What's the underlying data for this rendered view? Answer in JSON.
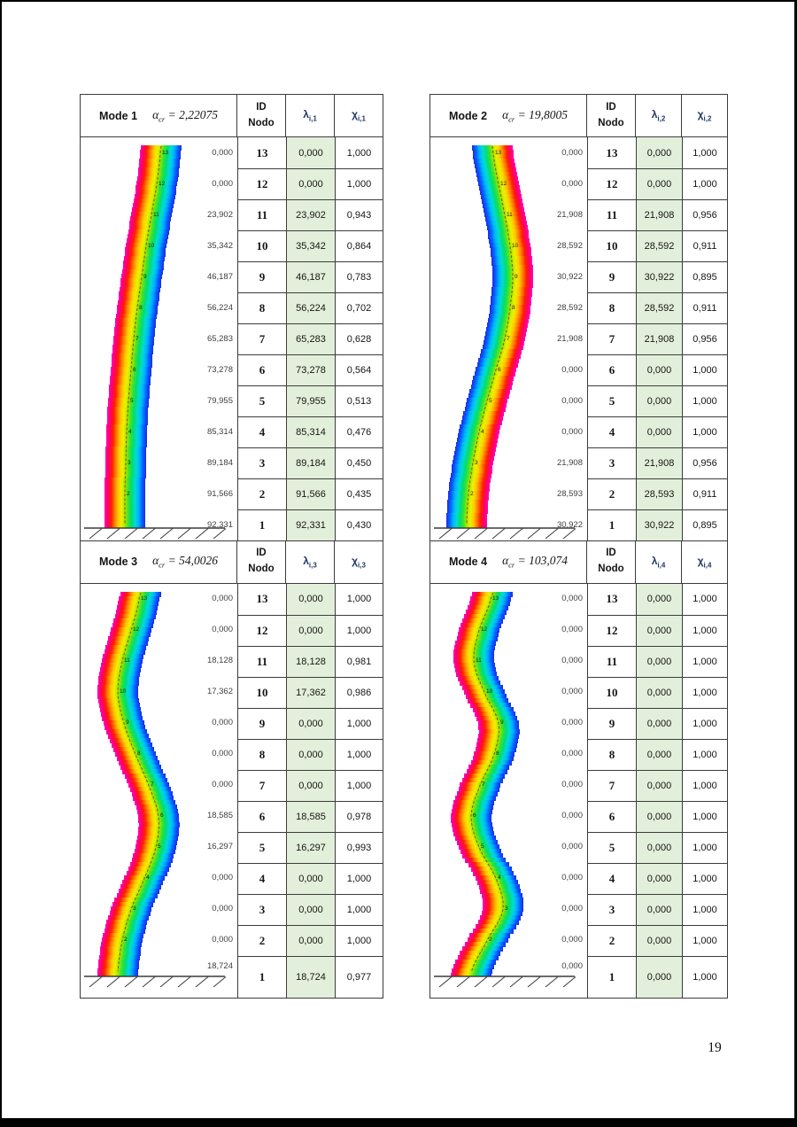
{
  "page": {
    "number": "19"
  },
  "palette": {
    "cell_green": "#e2efda",
    "border": "#3c3c3c",
    "header_symbol_color": "#1f3864",
    "centerline": "#c23000",
    "ground": "#3a3a3a",
    "rainbow": [
      "#ff00c0",
      "#ff0060",
      "#ff2000",
      "#ff7a00",
      "#ffc800",
      "#eef000",
      "#9cee00",
      "#3ce428",
      "#00dc78",
      "#00dcd0",
      "#00b4ff",
      "#0064ff",
      "#2228e8"
    ]
  },
  "modes": [
    {
      "name": "Mode 1",
      "alpha_symbol": "α",
      "alpha_sub": "cr",
      "alpha_value": "2,22075",
      "id_header": [
        "ID",
        "Nodo"
      ],
      "lambda_symbol": "λ",
      "lambda_sub": "i,1",
      "chi_symbol": "χ",
      "chi_sub": "i,1",
      "rows": [
        {
          "id": "13",
          "lambda": "0,000",
          "chi": "1,000",
          "annotation": "0,000"
        },
        {
          "id": "12",
          "lambda": "0,000",
          "chi": "1,000",
          "annotation": "0,000"
        },
        {
          "id": "11",
          "lambda": "23,902",
          "chi": "0,943",
          "annotation": "23,902"
        },
        {
          "id": "10",
          "lambda": "35,342",
          "chi": "0,864",
          "annotation": "35,342"
        },
        {
          "id": "9",
          "lambda": "46,187",
          "chi": "0,783",
          "annotation": "46,187"
        },
        {
          "id": "8",
          "lambda": "56,224",
          "chi": "0,702",
          "annotation": "56,224"
        },
        {
          "id": "7",
          "lambda": "65,283",
          "chi": "0,628",
          "annotation": "65,283"
        },
        {
          "id": "6",
          "lambda": "73,278",
          "chi": "0,564",
          "annotation": "73,278"
        },
        {
          "id": "5",
          "lambda": "79,955",
          "chi": "0,513",
          "annotation": "79,955"
        },
        {
          "id": "4",
          "lambda": "85,314",
          "chi": "0,476",
          "annotation": "85,314"
        },
        {
          "id": "3",
          "lambda": "89,184",
          "chi": "0,450",
          "annotation": "89,184"
        },
        {
          "id": "2",
          "lambda": "91,566",
          "chi": "0,435",
          "annotation": "91,566"
        },
        {
          "id": "1",
          "lambda": "92,331",
          "chi": "0,430",
          "annotation": "92,331"
        }
      ],
      "shape": {
        "centers": [
          90,
          86,
          80,
          74,
          69,
          64,
          60,
          57,
          54,
          52,
          51,
          50,
          50
        ],
        "half_width": 23,
        "flip": false
      }
    },
    {
      "name": "Mode 2",
      "alpha_symbol": "α",
      "alpha_sub": "cr",
      "alpha_value": "19,8005",
      "id_header": [
        "ID",
        "Nodo"
      ],
      "lambda_symbol": "λ",
      "lambda_sub": "i,2",
      "chi_symbol": "χ",
      "chi_sub": "i,2",
      "rows": [
        {
          "id": "13",
          "lambda": "0,000",
          "chi": "1,000",
          "annotation": "0,000"
        },
        {
          "id": "12",
          "lambda": "0,000",
          "chi": "1,000",
          "annotation": "0,000"
        },
        {
          "id": "11",
          "lambda": "21,908",
          "chi": "0,956",
          "annotation": "21,908"
        },
        {
          "id": "10",
          "lambda": "28,592",
          "chi": "0,911",
          "annotation": "28,592"
        },
        {
          "id": "9",
          "lambda": "30,922",
          "chi": "0,895",
          "annotation": "30,922"
        },
        {
          "id": "8",
          "lambda": "28,592",
          "chi": "0,911",
          "annotation": "28,592"
        },
        {
          "id": "7",
          "lambda": "21,908",
          "chi": "0,956",
          "annotation": "21,908"
        },
        {
          "id": "6",
          "lambda": "0,000",
          "chi": "1,000",
          "annotation": "0,000"
        },
        {
          "id": "5",
          "lambda": "0,000",
          "chi": "1,000",
          "annotation": "0,000"
        },
        {
          "id": "4",
          "lambda": "0,000",
          "chi": "1,000",
          "annotation": "0,000"
        },
        {
          "id": "3",
          "lambda": "21,908",
          "chi": "0,956",
          "annotation": "21,908"
        },
        {
          "id": "2",
          "lambda": "28,593",
          "chi": "0,911",
          "annotation": "28,593"
        },
        {
          "id": "1",
          "lambda": "30,922",
          "chi": "0,895",
          "annotation": "30,922"
        }
      ],
      "shape": {
        "centers": [
          71,
          77,
          84,
          90,
          93,
          90,
          84,
          74,
          64,
          55,
          48,
          43,
          41
        ],
        "half_width": 23,
        "flip": true
      }
    },
    {
      "name": "Mode 3",
      "alpha_symbol": "α",
      "alpha_sub": "cr",
      "alpha_value": "54,0026",
      "id_header": [
        "ID",
        "Nodo"
      ],
      "lambda_symbol": "λ",
      "lambda_sub": "i,3",
      "chi_symbol": "χ",
      "chi_sub": "i,3",
      "rows": [
        {
          "id": "13",
          "lambda": "0,000",
          "chi": "1,000",
          "annotation": "0,000"
        },
        {
          "id": "12",
          "lambda": "0,000",
          "chi": "1,000",
          "annotation": "0,000"
        },
        {
          "id": "11",
          "lambda": "18,128",
          "chi": "0,981",
          "annotation": "18,128"
        },
        {
          "id": "10",
          "lambda": "17,362",
          "chi": "0,986",
          "annotation": "17,362"
        },
        {
          "id": "9",
          "lambda": "0,000",
          "chi": "1,000",
          "annotation": "0,000"
        },
        {
          "id": "8",
          "lambda": "0,000",
          "chi": "1,000",
          "annotation": "0,000"
        },
        {
          "id": "7",
          "lambda": "0,000",
          "chi": "1,000",
          "annotation": "0,000"
        },
        {
          "id": "6",
          "lambda": "18,585",
          "chi": "0,978",
          "annotation": "18,585"
        },
        {
          "id": "5",
          "lambda": "16,297",
          "chi": "0,993",
          "annotation": "16,297"
        },
        {
          "id": "4",
          "lambda": "0,000",
          "chi": "1,000",
          "annotation": "0,000"
        },
        {
          "id": "3",
          "lambda": "0,000",
          "chi": "1,000",
          "annotation": "0,000"
        },
        {
          "id": "2",
          "lambda": "0,000",
          "chi": "1,000",
          "annotation": "0,000"
        },
        {
          "id": "1",
          "lambda": "18,724",
          "chi": "0,977",
          "annotation": "18,724"
        }
      ],
      "shape": {
        "centers": [
          66,
          57,
          47,
          42,
          49,
          62,
          77,
          88,
          85,
          72,
          57,
          47,
          42
        ],
        "half_width": 23,
        "flip": false
      }
    },
    {
      "name": "Mode 4",
      "alpha_symbol": "α",
      "alpha_sub": "cr",
      "alpha_value": "103,074",
      "id_header": [
        "ID",
        "Nodo"
      ],
      "lambda_symbol": "λ",
      "lambda_sub": "i,4",
      "chi_symbol": "χ",
      "chi_sub": "i,4",
      "rows": [
        {
          "id": "13",
          "lambda": "0,000",
          "chi": "1,000",
          "annotation": "0,000"
        },
        {
          "id": "12",
          "lambda": "0,000",
          "chi": "1,000",
          "annotation": "0,000"
        },
        {
          "id": "11",
          "lambda": "0,000",
          "chi": "1,000",
          "annotation": "0,000"
        },
        {
          "id": "10",
          "lambda": "0,000",
          "chi": "1,000",
          "annotation": "0,000"
        },
        {
          "id": "9",
          "lambda": "0,000",
          "chi": "1,000",
          "annotation": "0,000"
        },
        {
          "id": "8",
          "lambda": "0,000",
          "chi": "1,000",
          "annotation": "0,000"
        },
        {
          "id": "7",
          "lambda": "0,000",
          "chi": "1,000",
          "annotation": "0,000"
        },
        {
          "id": "6",
          "lambda": "0,000",
          "chi": "1,000",
          "annotation": "0,000"
        },
        {
          "id": "5",
          "lambda": "0,000",
          "chi": "1,000",
          "annotation": "0,000"
        },
        {
          "id": "4",
          "lambda": "0,000",
          "chi": "1,000",
          "annotation": "0,000"
        },
        {
          "id": "3",
          "lambda": "0,000",
          "chi": "1,000",
          "annotation": "0,000"
        },
        {
          "id": "2",
          "lambda": "0,000",
          "chi": "1,000",
          "annotation": "0,000"
        },
        {
          "id": "1",
          "lambda": "0,000",
          "chi": "1,000",
          "annotation": "0,000"
        }
      ],
      "shape": {
        "centers": [
          68,
          55,
          49,
          61,
          77,
          72,
          56,
          46,
          55,
          74,
          82,
          64,
          46
        ],
        "half_width": 23,
        "flip": false
      }
    }
  ]
}
